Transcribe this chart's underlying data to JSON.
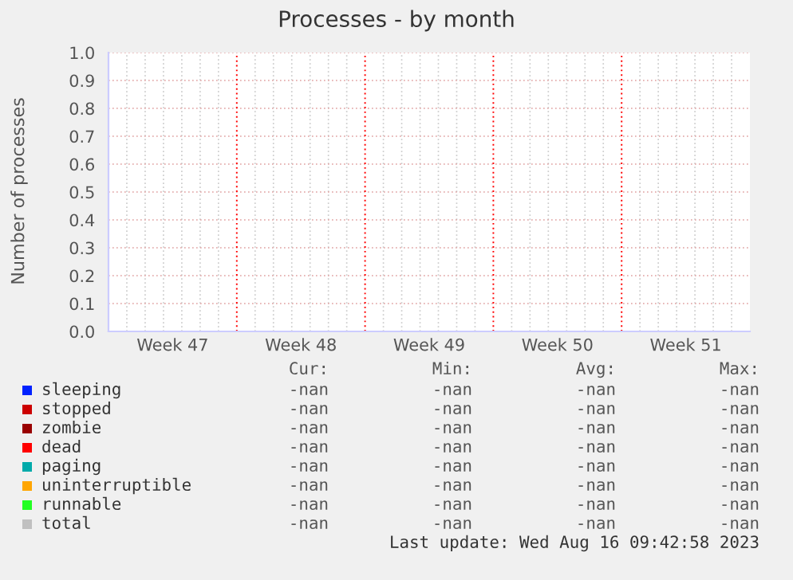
{
  "chart_data": {
    "type": "line",
    "title": "Processes - by month",
    "ylabel": "Number of processes",
    "categories": [
      "Week 47",
      "Week 48",
      "Week 49",
      "Week 50",
      "Week 51"
    ],
    "ylim": [
      0,
      1
    ],
    "yticks": [
      {
        "value": 0,
        "label": "0.0"
      },
      {
        "value": 0.1,
        "label": "0.1"
      },
      {
        "value": 0.2,
        "label": "0.2"
      },
      {
        "value": 0.3,
        "label": "0.3"
      },
      {
        "value": 0.4,
        "label": "0.4"
      },
      {
        "value": 0.5,
        "label": "0.5"
      },
      {
        "value": 0.6,
        "label": "0.6"
      },
      {
        "value": 0.7,
        "label": "0.7"
      },
      {
        "value": 0.8,
        "label": "0.8"
      },
      {
        "value": 0.9,
        "label": "0.9"
      },
      {
        "value": 1,
        "label": "1.0"
      }
    ],
    "grid": true,
    "legend": "bottom",
    "series": [
      {
        "name": "sleeping",
        "color": "#0022ff",
        "values": [
          null,
          null,
          null,
          null,
          null
        ]
      },
      {
        "name": "stopped",
        "color": "#cc0000",
        "values": [
          null,
          null,
          null,
          null,
          null
        ]
      },
      {
        "name": "zombie",
        "color": "#990000",
        "values": [
          null,
          null,
          null,
          null,
          null
        ]
      },
      {
        "name": "dead",
        "color": "#ff0000",
        "values": [
          null,
          null,
          null,
          null,
          null
        ]
      },
      {
        "name": "paging",
        "color": "#00aaaa",
        "values": [
          null,
          null,
          null,
          null,
          null
        ]
      },
      {
        "name": "uninterruptible",
        "color": "#ffa500",
        "values": [
          null,
          null,
          null,
          null,
          null
        ]
      },
      {
        "name": "runnable",
        "color": "#22ff22",
        "values": [
          null,
          null,
          null,
          null,
          null
        ]
      },
      {
        "name": "total",
        "color": "#c0c0c0",
        "values": [
          null,
          null,
          null,
          null,
          null
        ]
      }
    ],
    "annotations": [
      "Cur:",
      "Min:",
      "Avg:",
      "Max:",
      "-nan",
      "-nan",
      "-nan",
      "-nan",
      "-nan",
      "-nan",
      "-nan",
      "-nan",
      "-nan",
      "-nan",
      "-nan",
      "-nan",
      "-nan",
      "-nan",
      "-nan",
      "-nan",
      "-nan",
      "-nan",
      "-nan",
      "-nan",
      "-nan",
      "-nan",
      "-nan",
      "-nan",
      "-nan",
      "-nan",
      "-nan",
      "-nan",
      "-nan",
      "-nan",
      "-nan",
      "-nan",
      "Last update: Wed Aug 16 09:42:58 2023"
    ]
  }
}
